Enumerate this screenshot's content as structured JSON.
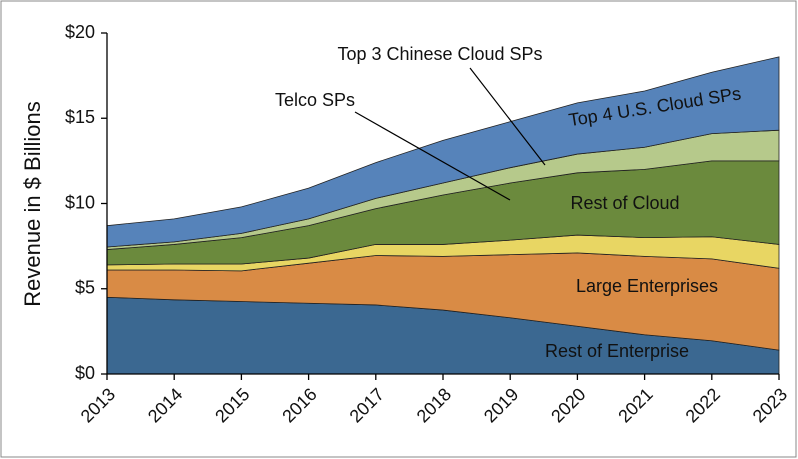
{
  "chart_data": {
    "type": "stacked_area",
    "y_label": "Revenue in $ Billions",
    "categories": [
      "2013",
      "2014",
      "2015",
      "2016",
      "2017",
      "2018",
      "2019",
      "2020",
      "2021",
      "2022",
      "2023"
    ],
    "ylim": [
      0,
      20
    ],
    "yticks": [
      {
        "value": 0,
        "label": "$0"
      },
      {
        "value": 5,
        "label": "$5"
      },
      {
        "value": 10,
        "label": "$10"
      },
      {
        "value": 15,
        "label": "$15"
      },
      {
        "value": 20,
        "label": "$20"
      }
    ],
    "series": [
      {
        "name": "Rest of Enterprise",
        "color": "#3b6891",
        "values": [
          4.5,
          4.35,
          4.25,
          4.15,
          4.05,
          3.75,
          3.3,
          2.8,
          2.3,
          1.95,
          1.4
        ]
      },
      {
        "name": "Large Enterprises",
        "color": "#d98b45",
        "values": [
          1.6,
          1.75,
          1.8,
          2.35,
          2.9,
          3.15,
          3.7,
          4.3,
          4.6,
          4.8,
          4.8
        ]
      },
      {
        "name": "Telco SPs",
        "color": "#e8d663",
        "values": [
          0.3,
          0.35,
          0.4,
          0.3,
          0.65,
          0.7,
          0.85,
          1.05,
          1.1,
          1.3,
          1.4
        ]
      },
      {
        "name": "Rest of Cloud",
        "color": "#6b8a3d",
        "values": [
          0.9,
          1.15,
          1.55,
          1.9,
          2.1,
          2.9,
          3.35,
          3.65,
          4.0,
          4.45,
          4.9
        ]
      },
      {
        "name": "Top 3 Chinese Cloud SPs",
        "color": "#b6c98b",
        "values": [
          0.15,
          0.15,
          0.25,
          0.4,
          0.6,
          0.7,
          0.9,
          1.1,
          1.3,
          1.6,
          1.8
        ]
      },
      {
        "name": "Top 4 U.S. Cloud SPs",
        "color": "#5683ba",
        "values": [
          1.25,
          1.35,
          1.55,
          1.8,
          2.1,
          2.5,
          2.7,
          3.0,
          3.3,
          3.6,
          4.3
        ]
      }
    ]
  }
}
